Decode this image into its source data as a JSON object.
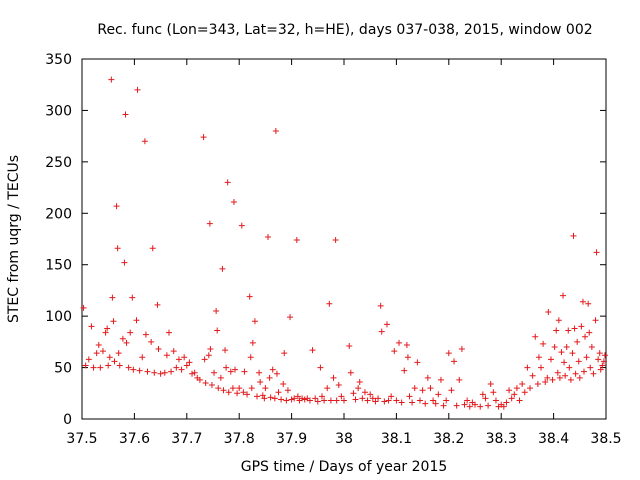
{
  "chart_data": {
    "type": "scatter",
    "title": "Rec. func (Lon=343, Lat=32, h=HE), days 037-038, 2015, window 002",
    "xlabel": "GPS time / Days of year 2015",
    "ylabel": "STEC from uqrg / TECUs",
    "xlim": [
      37.5,
      38.5
    ],
    "ylim": [
      0,
      350
    ],
    "xticks": [
      37.5,
      37.6,
      37.7,
      37.8,
      37.9,
      38.0,
      38.1,
      38.2,
      38.3,
      38.4,
      38.5
    ],
    "xtick_labels": [
      "37.5",
      "37.6",
      "37.7",
      "37.8",
      "37.9",
      "38",
      "38.1",
      "38.2",
      "38.3",
      "38.4",
      "38.5"
    ],
    "yticks": [
      0,
      50,
      100,
      150,
      200,
      250,
      300,
      350
    ],
    "ytick_labels": [
      "0",
      "50",
      "100",
      "150",
      "200",
      "250",
      "300",
      "350"
    ],
    "marker": "+",
    "color": "#e31a1c",
    "grid": false,
    "points": [
      [
        37.503,
        108
      ],
      [
        37.507,
        52
      ],
      [
        37.513,
        58
      ],
      [
        37.518,
        90
      ],
      [
        37.522,
        50
      ],
      [
        37.528,
        64
      ],
      [
        37.532,
        72
      ],
      [
        37.535,
        50
      ],
      [
        37.54,
        66
      ],
      [
        37.545,
        84
      ],
      [
        37.548,
        88
      ],
      [
        37.55,
        52
      ],
      [
        37.553,
        60
      ],
      [
        37.556,
        330
      ],
      [
        37.558,
        118
      ],
      [
        37.56,
        95
      ],
      [
        37.562,
        56
      ],
      [
        37.566,
        207
      ],
      [
        37.568,
        166
      ],
      [
        37.57,
        64
      ],
      [
        37.572,
        52
      ],
      [
        37.578,
        78
      ],
      [
        37.581,
        152
      ],
      [
        37.583,
        296
      ],
      [
        37.585,
        74
      ],
      [
        37.589,
        50
      ],
      [
        37.592,
        84
      ],
      [
        37.596,
        118
      ],
      [
        37.598,
        48
      ],
      [
        37.604,
        96
      ],
      [
        37.606,
        320
      ],
      [
        37.61,
        47
      ],
      [
        37.615,
        60
      ],
      [
        37.62,
        270
      ],
      [
        37.622,
        82
      ],
      [
        37.625,
        46
      ],
      [
        37.632,
        75
      ],
      [
        37.635,
        166
      ],
      [
        37.638,
        45
      ],
      [
        37.644,
        111
      ],
      [
        37.646,
        68
      ],
      [
        37.65,
        44
      ],
      [
        37.658,
        45
      ],
      [
        37.662,
        62
      ],
      [
        37.666,
        84
      ],
      [
        37.67,
        46
      ],
      [
        37.675,
        66
      ],
      [
        37.68,
        50
      ],
      [
        37.685,
        58
      ],
      [
        37.69,
        48
      ],
      [
        37.695,
        60
      ],
      [
        37.7,
        52
      ],
      [
        37.705,
        55
      ],
      [
        37.71,
        44
      ],
      [
        37.715,
        45
      ],
      [
        37.72,
        40
      ],
      [
        37.725,
        38
      ],
      [
        37.732,
        274
      ],
      [
        37.734,
        58
      ],
      [
        37.736,
        35
      ],
      [
        37.742,
        62
      ],
      [
        37.744,
        190
      ],
      [
        37.745,
        68
      ],
      [
        37.748,
        33
      ],
      [
        37.752,
        45
      ],
      [
        37.756,
        105
      ],
      [
        37.758,
        86
      ],
      [
        37.76,
        30
      ],
      [
        37.765,
        40
      ],
      [
        37.768,
        146
      ],
      [
        37.77,
        28
      ],
      [
        37.773,
        67
      ],
      [
        37.775,
        50
      ],
      [
        37.778,
        230
      ],
      [
        37.78,
        26
      ],
      [
        37.784,
        46
      ],
      [
        37.788,
        30
      ],
      [
        37.79,
        211
      ],
      [
        37.792,
        48
      ],
      [
        37.796,
        25
      ],
      [
        37.8,
        30
      ],
      [
        37.805,
        188
      ],
      [
        37.808,
        26
      ],
      [
        37.81,
        46
      ],
      [
        37.815,
        24
      ],
      [
        37.82,
        119
      ],
      [
        37.822,
        60
      ],
      [
        37.824,
        30
      ],
      [
        37.826,
        74
      ],
      [
        37.83,
        95
      ],
      [
        37.834,
        22
      ],
      [
        37.838,
        45
      ],
      [
        37.84,
        36
      ],
      [
        37.845,
        23
      ],
      [
        37.848,
        20
      ],
      [
        37.85,
        30
      ],
      [
        37.855,
        177
      ],
      [
        37.858,
        40
      ],
      [
        37.86,
        21
      ],
      [
        37.864,
        48
      ],
      [
        37.868,
        20
      ],
      [
        37.87,
        280
      ],
      [
        37.872,
        44
      ],
      [
        37.875,
        26
      ],
      [
        37.88,
        19
      ],
      [
        37.884,
        34
      ],
      [
        37.886,
        64
      ],
      [
        37.89,
        18
      ],
      [
        37.893,
        28
      ],
      [
        37.897,
        99
      ],
      [
        37.9,
        19
      ],
      [
        37.905,
        20
      ],
      [
        37.91,
        174
      ],
      [
        37.912,
        22
      ],
      [
        37.915,
        18
      ],
      [
        37.92,
        20
      ],
      [
        37.925,
        19
      ],
      [
        37.93,
        20
      ],
      [
        37.935,
        18
      ],
      [
        37.94,
        67
      ],
      [
        37.945,
        20
      ],
      [
        37.95,
        17
      ],
      [
        37.955,
        50
      ],
      [
        37.958,
        22
      ],
      [
        37.962,
        18
      ],
      [
        37.968,
        30
      ],
      [
        37.972,
        112
      ],
      [
        37.975,
        18
      ],
      [
        37.98,
        40
      ],
      [
        37.984,
        174
      ],
      [
        37.986,
        18
      ],
      [
        37.99,
        33
      ],
      [
        37.995,
        22
      ],
      [
        38.0,
        18
      ],
      [
        38.01,
        71
      ],
      [
        38.013,
        45
      ],
      [
        38.018,
        25
      ],
      [
        38.022,
        19
      ],
      [
        38.027,
        30
      ],
      [
        38.03,
        36
      ],
      [
        38.035,
        20
      ],
      [
        38.04,
        26
      ],
      [
        38.045,
        18
      ],
      [
        38.05,
        24
      ],
      [
        38.055,
        20
      ],
      [
        38.06,
        17
      ],
      [
        38.065,
        20
      ],
      [
        38.07,
        110
      ],
      [
        38.072,
        85
      ],
      [
        38.077,
        17
      ],
      [
        38.082,
        92
      ],
      [
        38.085,
        18
      ],
      [
        38.09,
        22
      ],
      [
        38.096,
        66
      ],
      [
        38.1,
        18
      ],
      [
        38.105,
        74
      ],
      [
        38.11,
        16
      ],
      [
        38.115,
        47
      ],
      [
        38.12,
        72
      ],
      [
        38.122,
        60
      ],
      [
        38.125,
        22
      ],
      [
        38.13,
        16
      ],
      [
        38.135,
        30
      ],
      [
        38.14,
        55
      ],
      [
        38.145,
        18
      ],
      [
        38.15,
        28
      ],
      [
        38.155,
        15
      ],
      [
        38.16,
        40
      ],
      [
        38.165,
        30
      ],
      [
        38.17,
        18
      ],
      [
        38.175,
        15
      ],
      [
        38.18,
        24
      ],
      [
        38.185,
        38
      ],
      [
        38.19,
        13
      ],
      [
        38.195,
        18
      ],
      [
        38.2,
        64
      ],
      [
        38.205,
        28
      ],
      [
        38.21,
        56
      ],
      [
        38.215,
        13
      ],
      [
        38.22,
        38
      ],
      [
        38.225,
        68
      ],
      [
        38.23,
        14
      ],
      [
        38.235,
        18
      ],
      [
        38.24,
        12
      ],
      [
        38.245,
        16
      ],
      [
        38.25,
        14
      ],
      [
        38.26,
        12
      ],
      [
        38.265,
        24
      ],
      [
        38.27,
        20
      ],
      [
        38.275,
        13
      ],
      [
        38.28,
        34
      ],
      [
        38.285,
        26
      ],
      [
        38.29,
        18
      ],
      [
        38.295,
        12
      ],
      [
        38.3,
        14
      ],
      [
        38.305,
        12
      ],
      [
        38.31,
        16
      ],
      [
        38.315,
        28
      ],
      [
        38.32,
        20
      ],
      [
        38.325,
        24
      ],
      [
        38.33,
        30
      ],
      [
        38.335,
        18
      ],
      [
        38.34,
        34
      ],
      [
        38.345,
        26
      ],
      [
        38.35,
        50
      ],
      [
        38.355,
        30
      ],
      [
        38.36,
        42
      ],
      [
        38.365,
        80
      ],
      [
        38.37,
        34
      ],
      [
        38.372,
        60
      ],
      [
        38.376,
        50
      ],
      [
        38.38,
        73
      ],
      [
        38.384,
        36
      ],
      [
        38.388,
        40
      ],
      [
        38.39,
        104
      ],
      [
        38.395,
        58
      ],
      [
        38.398,
        38
      ],
      [
        38.402,
        70
      ],
      [
        38.405,
        86
      ],
      [
        38.408,
        45
      ],
      [
        38.41,
        96
      ],
      [
        38.412,
        40
      ],
      [
        38.415,
        65
      ],
      [
        38.418,
        120
      ],
      [
        38.42,
        55
      ],
      [
        38.422,
        42
      ],
      [
        38.425,
        70
      ],
      [
        38.428,
        86
      ],
      [
        38.43,
        50
      ],
      [
        38.433,
        38
      ],
      [
        38.436,
        64
      ],
      [
        38.438,
        178
      ],
      [
        38.44,
        88
      ],
      [
        38.442,
        44
      ],
      [
        38.445,
        75
      ],
      [
        38.448,
        56
      ],
      [
        38.45,
        40
      ],
      [
        38.453,
        90
      ],
      [
        38.456,
        114
      ],
      [
        38.458,
        46
      ],
      [
        38.46,
        80
      ],
      [
        38.463,
        60
      ],
      [
        38.466,
        112
      ],
      [
        38.468,
        84
      ],
      [
        38.47,
        50
      ],
      [
        38.473,
        70
      ],
      [
        38.476,
        44
      ],
      [
        38.48,
        96
      ],
      [
        38.482,
        162
      ],
      [
        38.485,
        58
      ],
      [
        38.488,
        64
      ],
      [
        38.49,
        48
      ],
      [
        38.493,
        52
      ],
      [
        38.496,
        56
      ],
      [
        38.498,
        62
      ]
    ]
  }
}
